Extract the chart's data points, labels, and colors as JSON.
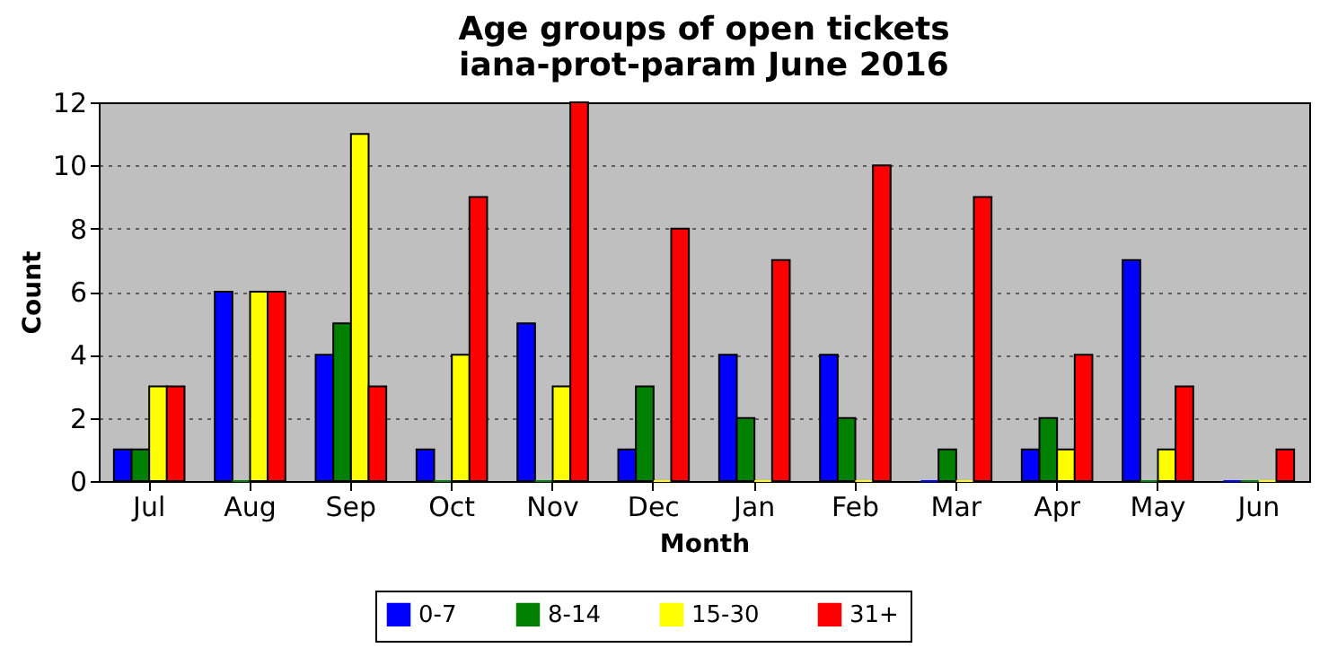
{
  "chart_data": {
    "type": "bar",
    "title": "Age groups of open tickets",
    "subtitle": "iana-prot-param June 2016",
    "xlabel": "Month",
    "ylabel": "Count",
    "categories": [
      "Jul",
      "Aug",
      "Sep",
      "Oct",
      "Nov",
      "Dec",
      "Jan",
      "Feb",
      "Mar",
      "Apr",
      "May",
      "Jun"
    ],
    "series": [
      {
        "name": "0-7",
        "color": "#0000ff",
        "values": [
          1,
          6,
          4,
          1,
          5,
          1,
          4,
          4,
          0,
          1,
          7,
          0
        ]
      },
      {
        "name": "8-14",
        "color": "#008000",
        "values": [
          1,
          0,
          5,
          0,
          0,
          3,
          2,
          2,
          1,
          2,
          0,
          0
        ]
      },
      {
        "name": "15-30",
        "color": "#ffff00",
        "values": [
          3,
          6,
          11,
          4,
          3,
          0,
          0,
          0,
          0,
          1,
          1,
          0
        ]
      },
      {
        "name": "31+",
        "color": "#ff0000",
        "values": [
          3,
          6,
          3,
          9,
          12,
          8,
          7,
          10,
          9,
          4,
          3,
          1
        ]
      }
    ],
    "ylim": [
      0,
      12
    ],
    "yticks": [
      0,
      2,
      4,
      6,
      8,
      10,
      12
    ],
    "grid": "y",
    "legend": "bottom"
  }
}
